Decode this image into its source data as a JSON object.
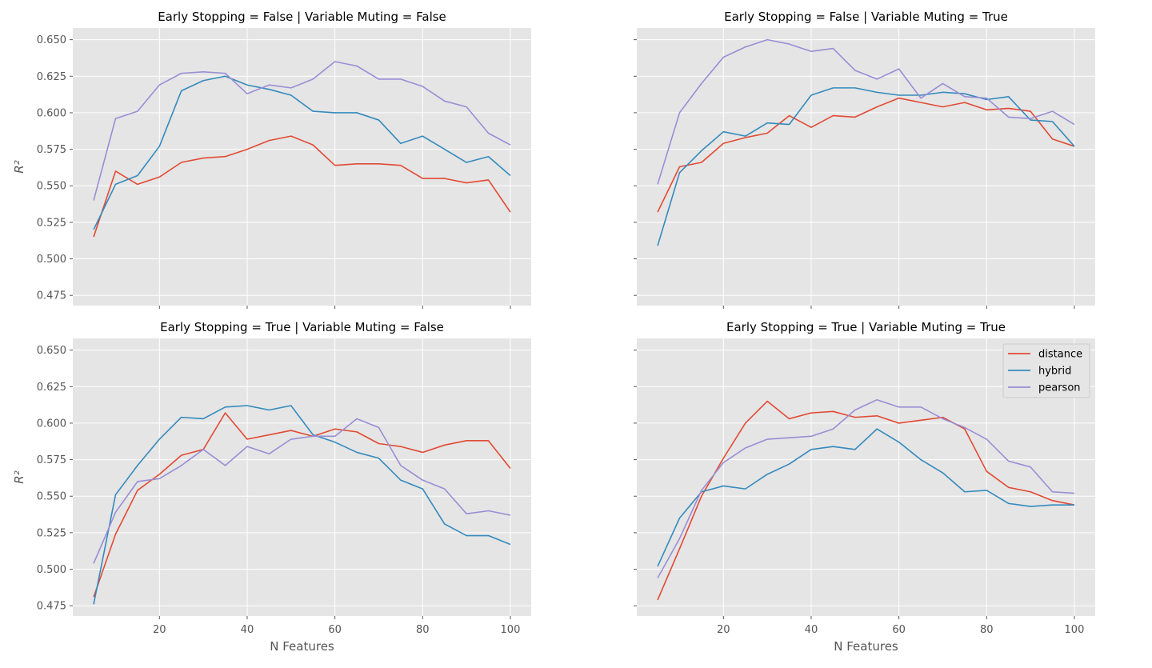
{
  "chart_data": {
    "type": "line",
    "xlabel": "N Features",
    "ylabel": "R²",
    "x": [
      5,
      10,
      15,
      20,
      25,
      30,
      35,
      40,
      45,
      50,
      55,
      60,
      65,
      70,
      75,
      80,
      85,
      90,
      95,
      100
    ],
    "xticks": [
      20,
      40,
      60,
      80,
      100
    ],
    "yticks": [
      0.475,
      0.5,
      0.525,
      0.55,
      0.575,
      0.6,
      0.625,
      0.65
    ],
    "ytick_labels": [
      "0.475",
      "0.500",
      "0.525",
      "0.550",
      "0.575",
      "0.600",
      "0.625",
      "0.650"
    ],
    "xlim": [
      0.25,
      104.75
    ],
    "ylim": [
      0.468,
      0.658
    ],
    "legend": {
      "placement": "top-right of bottom-right panel",
      "entries": [
        "distance",
        "hybrid",
        "pearson"
      ]
    },
    "colors": {
      "distance": "#E24A33",
      "hybrid": "#348ABD",
      "pearson": "#988ED5"
    },
    "panels": [
      {
        "title": "Early Stopping = False | Variable Muting = False",
        "series": [
          {
            "name": "distance",
            "values": [
              0.515,
              0.56,
              0.551,
              0.556,
              0.566,
              0.569,
              0.57,
              0.575,
              0.581,
              0.584,
              0.578,
              0.564,
              0.565,
              0.565,
              0.564,
              0.555,
              0.555,
              0.552,
              0.554,
              0.532
            ]
          },
          {
            "name": "hybrid",
            "values": [
              0.52,
              0.551,
              0.557,
              0.577,
              0.615,
              0.622,
              0.625,
              0.619,
              0.616,
              0.612,
              0.601,
              0.6,
              0.6,
              0.595,
              0.579,
              0.584,
              0.575,
              0.566,
              0.57,
              0.557
            ]
          },
          {
            "name": "pearson",
            "values": [
              0.54,
              0.596,
              0.601,
              0.619,
              0.627,
              0.628,
              0.627,
              0.613,
              0.619,
              0.617,
              0.623,
              0.635,
              0.632,
              0.623,
              0.623,
              0.618,
              0.608,
              0.604,
              0.586,
              0.578
            ]
          }
        ]
      },
      {
        "title": "Early Stopping = False | Variable Muting = True",
        "series": [
          {
            "name": "distance",
            "values": [
              0.532,
              0.563,
              0.566,
              0.579,
              0.583,
              0.586,
              0.598,
              0.59,
              0.598,
              0.597,
              0.604,
              0.61,
              0.607,
              0.604,
              0.607,
              0.602,
              0.603,
              0.601,
              0.582,
              0.577
            ]
          },
          {
            "name": "hybrid",
            "values": [
              0.509,
              0.559,
              0.574,
              0.587,
              0.584,
              0.593,
              0.592,
              0.612,
              0.617,
              0.617,
              0.614,
              0.612,
              0.612,
              0.614,
              0.613,
              0.609,
              0.611,
              0.595,
              0.594,
              0.577
            ]
          },
          {
            "name": "pearson",
            "values": [
              0.551,
              0.6,
              0.62,
              0.638,
              0.645,
              0.65,
              0.647,
              0.642,
              0.644,
              0.629,
              0.623,
              0.63,
              0.61,
              0.62,
              0.611,
              0.61,
              0.597,
              0.596,
              0.601,
              0.592
            ]
          }
        ]
      },
      {
        "title": "Early Stopping = True | Variable Muting = False",
        "series": [
          {
            "name": "distance",
            "values": [
              0.481,
              0.524,
              0.554,
              0.565,
              0.578,
              0.582,
              0.607,
              0.589,
              0.592,
              0.595,
              0.591,
              0.596,
              0.594,
              0.586,
              0.584,
              0.58,
              0.585,
              0.588,
              0.588,
              0.569
            ]
          },
          {
            "name": "hybrid",
            "values": [
              0.476,
              0.551,
              0.571,
              0.589,
              0.604,
              0.603,
              0.611,
              0.612,
              0.609,
              0.612,
              0.592,
              0.587,
              0.58,
              0.576,
              0.561,
              0.555,
              0.531,
              0.523,
              0.523,
              0.517
            ]
          },
          {
            "name": "pearson",
            "values": [
              0.504,
              0.539,
              0.56,
              0.562,
              0.571,
              0.582,
              0.571,
              0.584,
              0.579,
              0.589,
              0.591,
              0.591,
              0.603,
              0.597,
              0.571,
              0.561,
              0.555,
              0.538,
              0.54,
              0.537
            ]
          }
        ]
      },
      {
        "title": "Early Stopping = True | Variable Muting = True",
        "series": [
          {
            "name": "distance",
            "values": [
              0.479,
              0.514,
              0.55,
              0.576,
              0.6,
              0.615,
              0.603,
              0.607,
              0.608,
              0.604,
              0.605,
              0.6,
              0.602,
              0.604,
              0.596,
              0.567,
              0.556,
              0.553,
              0.547,
              0.544
            ]
          },
          {
            "name": "hybrid",
            "values": [
              0.502,
              0.535,
              0.553,
              0.557,
              0.555,
              0.565,
              0.572,
              0.582,
              0.584,
              0.582,
              0.596,
              0.587,
              0.575,
              0.566,
              0.553,
              0.554,
              0.545,
              0.543,
              0.544,
              0.544
            ]
          },
          {
            "name": "pearson",
            "values": [
              0.494,
              0.521,
              0.554,
              0.573,
              0.583,
              0.589,
              0.59,
              0.591,
              0.596,
              0.609,
              0.616,
              0.611,
              0.611,
              0.603,
              0.597,
              0.589,
              0.574,
              0.57,
              0.553,
              0.552
            ]
          }
        ]
      }
    ]
  }
}
